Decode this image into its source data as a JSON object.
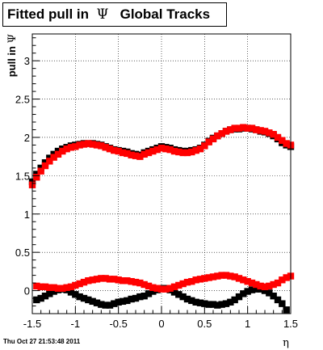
{
  "title": {
    "text_before": "Fitted pull in",
    "symbol": "Ψ",
    "text_after": "Global Tracks"
  },
  "timestamp": "Thu Oct 27 21:53:48 2011",
  "colors": {
    "series_black": "#000000",
    "series_red": "#ff0000",
    "grid": "#000000"
  },
  "chart_data": {
    "type": "scatter",
    "title": "Fitted pull in Ψ  Global Tracks",
    "xlabel": "η",
    "ylabel": "pull in Ψ",
    "xlim": [
      -1.5,
      1.5
    ],
    "ylim": [
      -0.3,
      3.35
    ],
    "xticks": [
      -1.5,
      -1,
      -0.5,
      0,
      0.5,
      1,
      1.5
    ],
    "xtick_labels": [
      "-1.5",
      "-1",
      "-0.5",
      "0",
      "0.5",
      "1",
      "1.5"
    ],
    "yticks": [
      0,
      0.5,
      1,
      1.5,
      2,
      2.5,
      3
    ],
    "ytick_labels": [
      "0",
      "0.5",
      "1",
      "1.5",
      "2",
      "2.5",
      "3"
    ],
    "grid": true,
    "series": [
      {
        "marker": "square",
        "color": "#000000",
        "points": [
          [
            -1.5,
            1.42
          ],
          [
            -1.45,
            1.52
          ],
          [
            -1.4,
            1.6
          ],
          [
            -1.35,
            1.67
          ],
          [
            -1.3,
            1.73
          ],
          [
            -1.25,
            1.78
          ],
          [
            -1.2,
            1.82
          ],
          [
            -1.15,
            1.85
          ],
          [
            -1.1,
            1.87
          ],
          [
            -1.05,
            1.89
          ],
          [
            -1,
            1.9
          ],
          [
            -0.95,
            1.91
          ],
          [
            -0.9,
            1.92
          ],
          [
            -0.85,
            1.92
          ],
          [
            -0.8,
            1.92
          ],
          [
            -0.75,
            1.91
          ],
          [
            -0.7,
            1.9
          ],
          [
            -0.65,
            1.88
          ],
          [
            -0.6,
            1.86
          ],
          [
            -0.55,
            1.84
          ],
          [
            -0.5,
            1.83
          ],
          [
            -0.45,
            1.82
          ],
          [
            -0.4,
            1.81
          ],
          [
            -0.35,
            1.79
          ],
          [
            -0.3,
            1.78
          ],
          [
            -0.25,
            1.77
          ],
          [
            -0.2,
            1.8
          ],
          [
            -0.15,
            1.82
          ],
          [
            -0.1,
            1.84
          ],
          [
            -0.05,
            1.86
          ],
          [
            0,
            1.88
          ],
          [
            0.05,
            1.87
          ],
          [
            0.1,
            1.86
          ],
          [
            0.15,
            1.84
          ],
          [
            0.2,
            1.83
          ],
          [
            0.25,
            1.82
          ],
          [
            0.3,
            1.82
          ],
          [
            0.35,
            1.83
          ],
          [
            0.4,
            1.84
          ],
          [
            0.45,
            1.86
          ],
          [
            0.5,
            1.9
          ],
          [
            0.55,
            1.95
          ],
          [
            0.6,
            1.99
          ],
          [
            0.65,
            2.02
          ],
          [
            0.7,
            2.05
          ],
          [
            0.75,
            2.08
          ],
          [
            0.8,
            2.1
          ],
          [
            0.85,
            2.11
          ],
          [
            0.9,
            2.11
          ],
          [
            0.95,
            2.12
          ],
          [
            1,
            2.12
          ],
          [
            1.05,
            2.11
          ],
          [
            1.1,
            2.1
          ],
          [
            1.15,
            2.08
          ],
          [
            1.2,
            2.07
          ],
          [
            1.25,
            2.05
          ],
          [
            1.3,
            2.02
          ],
          [
            1.35,
            1.98
          ],
          [
            1.4,
            1.93
          ],
          [
            1.45,
            1.9
          ],
          [
            1.5,
            1.88
          ],
          [
            -1.45,
            -0.12
          ],
          [
            -1.4,
            -0.1
          ],
          [
            -1.35,
            -0.07
          ],
          [
            -1.3,
            -0.04
          ],
          [
            -1.25,
            -0.01
          ],
          [
            -1.2,
            0.01
          ],
          [
            -1.15,
            0.02
          ],
          [
            -1.1,
            0.01
          ],
          [
            -1.05,
            -0.02
          ],
          [
            -1,
            -0.05
          ],
          [
            -0.95,
            -0.08
          ],
          [
            -0.9,
            -0.1
          ],
          [
            -0.85,
            -0.12
          ],
          [
            -0.8,
            -0.14
          ],
          [
            -0.75,
            -0.16
          ],
          [
            -0.7,
            -0.18
          ],
          [
            -0.65,
            -0.19
          ],
          [
            -0.6,
            -0.19
          ],
          [
            -0.55,
            -0.17
          ],
          [
            -0.5,
            -0.15
          ],
          [
            -0.45,
            -0.14
          ],
          [
            -0.4,
            -0.13
          ],
          [
            -0.35,
            -0.11
          ],
          [
            -0.3,
            -0.1
          ],
          [
            -0.25,
            -0.08
          ],
          [
            -0.2,
            -0.07
          ],
          [
            -0.15,
            -0.04
          ],
          [
            -0.1,
            -0.01
          ],
          [
            -0.05,
            0.01
          ],
          [
            0,
            0.03
          ],
          [
            0.05,
            0.03
          ],
          [
            0.1,
            0.01
          ],
          [
            0.15,
            -0.02
          ],
          [
            0.2,
            -0.05
          ],
          [
            0.25,
            -0.08
          ],
          [
            0.3,
            -0.11
          ],
          [
            0.35,
            -0.13
          ],
          [
            0.4,
            -0.15
          ],
          [
            0.45,
            -0.16
          ],
          [
            0.5,
            -0.17
          ],
          [
            0.55,
            -0.18
          ],
          [
            0.6,
            -0.18
          ],
          [
            0.65,
            -0.19
          ],
          [
            0.7,
            -0.18
          ],
          [
            0.75,
            -0.17
          ],
          [
            0.8,
            -0.15
          ],
          [
            0.85,
            -0.12
          ],
          [
            0.9,
            -0.08
          ],
          [
            0.95,
            -0.04
          ],
          [
            1,
            -0.01
          ],
          [
            1.05,
            0.01
          ],
          [
            1.1,
            0.02
          ],
          [
            1.15,
            0.02
          ],
          [
            1.2,
            0
          ],
          [
            1.25,
            -0.03
          ],
          [
            1.3,
            -0.07
          ],
          [
            1.35,
            -0.12
          ],
          [
            1.4,
            -0.17
          ],
          [
            1.45,
            -0.25
          ]
        ]
      },
      {
        "marker": "square",
        "color": "#ff0000",
        "points": [
          [
            -1.5,
            1.38
          ],
          [
            -1.45,
            1.48
          ],
          [
            -1.4,
            1.56
          ],
          [
            -1.35,
            1.63
          ],
          [
            -1.3,
            1.69
          ],
          [
            -1.25,
            1.74
          ],
          [
            -1.2,
            1.78
          ],
          [
            -1.15,
            1.82
          ],
          [
            -1.1,
            1.85
          ],
          [
            -1.05,
            1.87
          ],
          [
            -1,
            1.88
          ],
          [
            -0.95,
            1.9
          ],
          [
            -0.9,
            1.91
          ],
          [
            -0.85,
            1.92
          ],
          [
            -0.8,
            1.91
          ],
          [
            -0.75,
            1.9
          ],
          [
            -0.7,
            1.89
          ],
          [
            -0.65,
            1.87
          ],
          [
            -0.6,
            1.85
          ],
          [
            -0.55,
            1.83
          ],
          [
            -0.5,
            1.82
          ],
          [
            -0.45,
            1.8
          ],
          [
            -0.4,
            1.79
          ],
          [
            -0.35,
            1.77
          ],
          [
            -0.3,
            1.76
          ],
          [
            -0.25,
            1.75
          ],
          [
            -0.2,
            1.78
          ],
          [
            -0.15,
            1.8
          ],
          [
            -0.1,
            1.82
          ],
          [
            -0.05,
            1.84
          ],
          [
            0,
            1.86
          ],
          [
            0.05,
            1.85
          ],
          [
            0.1,
            1.84
          ],
          [
            0.15,
            1.82
          ],
          [
            0.2,
            1.81
          ],
          [
            0.25,
            1.8
          ],
          [
            0.3,
            1.8
          ],
          [
            0.35,
            1.81
          ],
          [
            0.4,
            1.83
          ],
          [
            0.45,
            1.85
          ],
          [
            0.5,
            1.89
          ],
          [
            0.55,
            1.94
          ],
          [
            0.6,
            1.98
          ],
          [
            0.65,
            2.02
          ],
          [
            0.7,
            2.05
          ],
          [
            0.75,
            2.08
          ],
          [
            0.8,
            2.1
          ],
          [
            0.85,
            2.12
          ],
          [
            0.9,
            2.12
          ],
          [
            0.95,
            2.13
          ],
          [
            1,
            2.12
          ],
          [
            1.05,
            2.12
          ],
          [
            1.1,
            2.1
          ],
          [
            1.15,
            2.09
          ],
          [
            1.2,
            2.08
          ],
          [
            1.25,
            2.06
          ],
          [
            1.3,
            2.04
          ],
          [
            1.35,
            2.0
          ],
          [
            1.4,
            1.96
          ],
          [
            1.45,
            1.92
          ],
          [
            1.5,
            1.9
          ],
          [
            -1.45,
            0.06
          ],
          [
            -1.4,
            0.05
          ],
          [
            -1.35,
            0.05
          ],
          [
            -1.3,
            0.04
          ],
          [
            -1.25,
            0.04
          ],
          [
            -1.2,
            0.03
          ],
          [
            -1.15,
            0.03
          ],
          [
            -1.1,
            0.04
          ],
          [
            -1.05,
            0.05
          ],
          [
            -1,
            0.07
          ],
          [
            -0.95,
            0.09
          ],
          [
            -0.9,
            0.11
          ],
          [
            -0.85,
            0.13
          ],
          [
            -0.8,
            0.14
          ],
          [
            -0.75,
            0.15
          ],
          [
            -0.7,
            0.16
          ],
          [
            -0.65,
            0.16
          ],
          [
            -0.6,
            0.15
          ],
          [
            -0.55,
            0.15
          ],
          [
            -0.5,
            0.14
          ],
          [
            -0.45,
            0.13
          ],
          [
            -0.4,
            0.13
          ],
          [
            -0.35,
            0.12
          ],
          [
            -0.3,
            0.11
          ],
          [
            -0.25,
            0.1
          ],
          [
            -0.2,
            0.08
          ],
          [
            -0.15,
            0.06
          ],
          [
            -0.1,
            0.04
          ],
          [
            -0.05,
            0.03
          ],
          [
            0,
            0.02
          ],
          [
            0.05,
            0.02
          ],
          [
            0.1,
            0.03
          ],
          [
            0.15,
            0.05
          ],
          [
            0.2,
            0.07
          ],
          [
            0.25,
            0.09
          ],
          [
            0.3,
            0.11
          ],
          [
            0.35,
            0.12
          ],
          [
            0.4,
            0.14
          ],
          [
            0.45,
            0.15
          ],
          [
            0.5,
            0.16
          ],
          [
            0.55,
            0.17
          ],
          [
            0.6,
            0.18
          ],
          [
            0.65,
            0.19
          ],
          [
            0.7,
            0.2
          ],
          [
            0.75,
            0.2
          ],
          [
            0.8,
            0.19
          ],
          [
            0.85,
            0.18
          ],
          [
            0.9,
            0.16
          ],
          [
            0.95,
            0.14
          ],
          [
            1,
            0.12
          ],
          [
            1.05,
            0.1
          ],
          [
            1.1,
            0.08
          ],
          [
            1.15,
            0.06
          ],
          [
            1.2,
            0.05
          ],
          [
            1.25,
            0.06
          ],
          [
            1.3,
            0.08
          ],
          [
            1.35,
            0.1
          ],
          [
            1.4,
            0.14
          ],
          [
            1.45,
            0.17
          ],
          [
            1.5,
            0.19
          ]
        ]
      }
    ]
  }
}
